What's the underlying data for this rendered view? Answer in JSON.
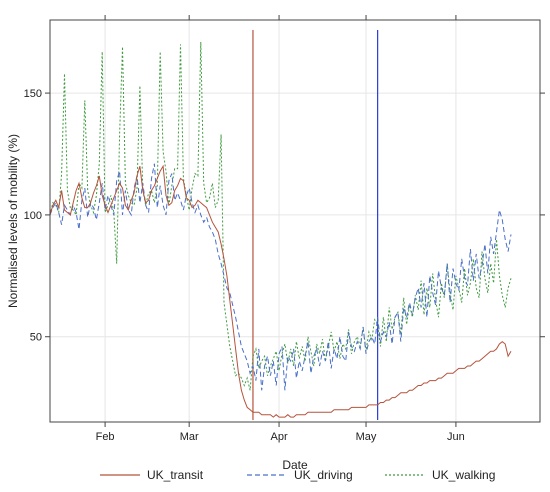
{
  "chart_data": {
    "type": "line",
    "title": "",
    "xlabel": "Date",
    "ylabel": "Normalised levels of mobility (%)",
    "x_ticks": [
      "Feb",
      "Mar",
      "Apr",
      "May",
      "Jun"
    ],
    "x_tick_days": [
      32,
      61,
      92,
      122,
      153
    ],
    "x_range_days": [
      13,
      182
    ],
    "y_ticks": [
      50,
      100,
      150
    ],
    "ylim": [
      15,
      180
    ],
    "grid": true,
    "legend_position": "bottom",
    "vlines": [
      {
        "day": 83,
        "color": "#b5533c"
      },
      {
        "day": 126,
        "color": "#2a3bd6"
      }
    ],
    "series": [
      {
        "name": "UK_transit",
        "color": "#b5533c",
        "dash": "",
        "days_start": 13,
        "values": [
          100,
          104,
          106,
          103,
          110,
          102,
          101,
          100,
          105,
          110,
          113,
          107,
          103,
          103,
          105,
          109,
          112,
          116,
          108,
          104,
          101,
          104,
          107,
          110,
          113,
          111,
          104,
          102,
          106,
          109,
          116,
          120,
          110,
          105,
          106,
          110,
          112,
          115,
          118,
          120,
          108,
          104,
          105,
          110,
          112,
          115,
          114,
          107,
          106,
          103,
          104,
          106,
          105,
          104,
          103,
          100,
          97,
          95,
          93,
          88,
          82,
          75,
          65,
          55,
          45,
          35,
          28,
          24,
          21,
          20,
          19,
          19,
          19,
          18,
          18,
          18,
          18,
          17,
          18,
          17,
          17,
          17,
          18,
          17,
          17,
          18,
          18,
          18,
          18,
          19,
          19,
          19,
          19,
          19,
          19,
          19,
          19,
          19,
          20,
          20,
          20,
          20,
          20,
          20,
          21,
          21,
          21,
          21,
          21,
          21,
          22,
          22,
          22,
          22,
          23,
          23,
          24,
          24,
          25,
          25,
          26,
          27,
          27,
          27,
          28,
          28,
          29,
          30,
          30,
          31,
          31,
          32,
          32,
          32,
          33,
          33,
          34,
          35,
          35,
          35,
          36,
          37,
          37,
          37,
          38,
          38,
          39,
          40,
          40,
          41,
          42,
          43,
          44,
          44,
          45,
          47,
          48,
          47,
          42,
          44
        ]
      },
      {
        "name": "UK_driving",
        "color": "#4a6fc9",
        "dash": "5,3",
        "days_start": 13,
        "values": [
          100,
          103,
          105,
          101,
          96,
          104,
          102,
          100,
          104,
          101,
          94,
          106,
          111,
          99,
          105,
          103,
          98,
          105,
          113,
          102,
          108,
          104,
          100,
          114,
          118,
          100,
          110,
          102,
          100,
          111,
          116,
          105,
          113,
          104,
          101,
          115,
          121,
          103,
          112,
          104,
          100,
          114,
          117,
          106,
          109,
          106,
          102,
          108,
          111,
          105,
          101,
          104,
          100,
          97,
          99,
          95,
          93,
          90,
          84,
          80,
          75,
          70,
          68,
          63,
          58,
          52,
          46,
          43,
          40,
          35,
          38,
          32,
          45,
          28,
          38,
          42,
          34,
          40,
          30,
          43,
          46,
          28,
          42,
          40,
          45,
          33,
          40,
          36,
          42,
          48,
          35,
          42,
          45,
          38,
          44,
          40,
          48,
          37,
          45,
          41,
          50,
          42,
          40,
          52,
          46,
          44,
          48,
          45,
          54,
          43,
          48,
          50,
          47,
          58,
          48,
          52,
          50,
          56,
          47,
          58,
          60,
          48,
          62,
          58,
          64,
          59,
          66,
          70,
          62,
          72,
          58,
          75,
          68,
          63,
          77,
          70,
          67,
          80,
          64,
          78,
          72,
          69,
          82,
          74,
          71,
          86,
          73,
          84,
          74,
          79,
          88,
          76,
          91,
          84,
          93,
          102,
          98,
          90,
          85,
          92
        ]
      },
      {
        "name": "UK_walking",
        "color": "#3f9b3f",
        "dash": "2,2",
        "days_start": 13,
        "values": [
          100,
          105,
          104,
          101,
          117,
          158,
          110,
          103,
          102,
          100,
          113,
          111,
          147,
          110,
          104,
          101,
          108,
          121,
          167,
          101,
          104,
          108,
          101,
          80,
          133,
          169,
          113,
          108,
          105,
          104,
          111,
          153,
          110,
          104,
          109,
          110,
          105,
          112,
          167,
          126,
          118,
          104,
          112,
          119,
          119,
          170,
          115,
          108,
          102,
          111,
          117,
          116,
          171,
          113,
          105,
          107,
          113,
          103,
          106,
          133,
          64,
          55,
          46,
          40,
          34,
          35,
          33,
          30,
          33,
          28,
          42,
          45,
          37,
          40,
          42,
          34,
          38,
          41,
          44,
          36,
          43,
          47,
          39,
          45,
          38,
          48,
          41,
          46,
          40,
          50,
          44,
          38,
          47,
          43,
          49,
          40,
          46,
          52,
          44,
          48,
          41,
          47,
          45,
          53,
          43,
          48,
          50,
          46,
          54,
          44,
          52,
          49,
          57,
          55,
          46,
          58,
          48,
          62,
          53,
          58,
          60,
          51,
          66,
          55,
          63,
          58,
          67,
          61,
          73,
          59,
          70,
          62,
          76,
          65,
          58,
          72,
          66,
          80,
          68,
          61,
          75,
          70,
          64,
          78,
          67,
          72,
          82,
          70,
          66,
          85,
          74,
          68,
          80,
          72,
          90,
          75,
          67,
          62,
          70,
          74
        ]
      }
    ]
  }
}
